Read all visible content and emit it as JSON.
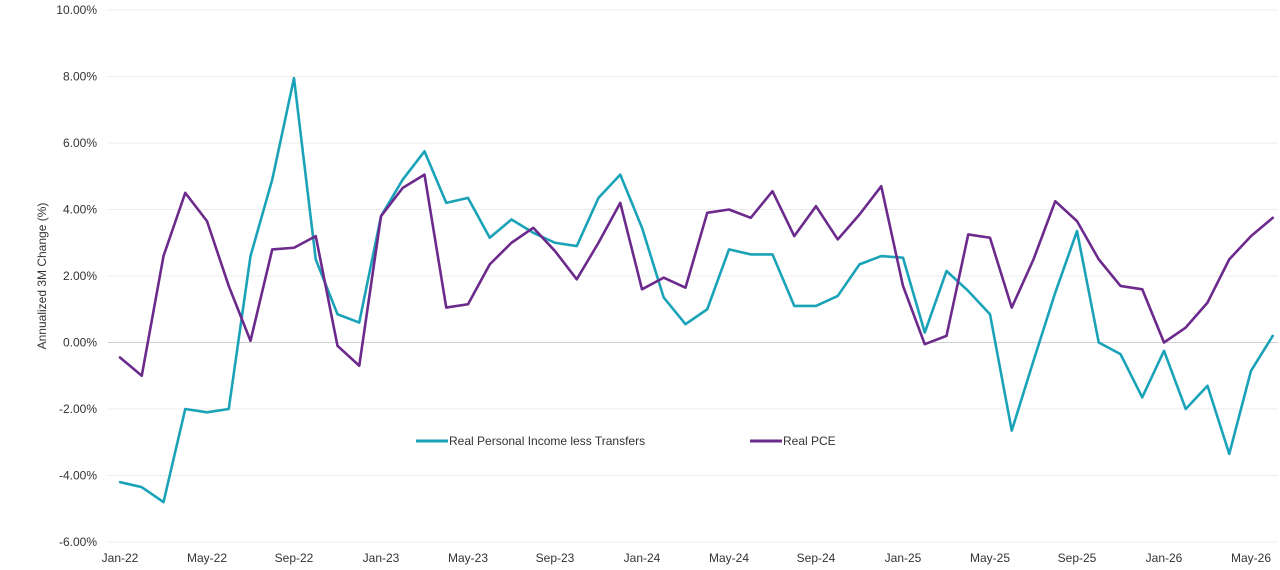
{
  "chart_data": {
    "type": "line",
    "title": "",
    "xlabel": "",
    "ylabel": "Annualized 3M Change (%)",
    "ylim": [
      -6,
      10
    ],
    "y_ticks": [
      "-6.00%",
      "-4.00%",
      "-2.00%",
      "0.00%",
      "2.00%",
      "4.00%",
      "6.00%",
      "8.00%",
      "10.00%"
    ],
    "y_tick_values": [
      -6,
      -4,
      -2,
      0,
      2,
      4,
      6,
      8,
      10
    ],
    "grid": true,
    "legend_position": "lower-center",
    "x_labels": [
      {
        "index": 0,
        "label": "Jan-22"
      },
      {
        "index": 4,
        "label": "May-22"
      },
      {
        "index": 8,
        "label": "Sep-22"
      },
      {
        "index": 12,
        "label": "Jan-23"
      },
      {
        "index": 16,
        "label": "May-23"
      },
      {
        "index": 20,
        "label": "Sep-23"
      },
      {
        "index": 24,
        "label": "Jan-24"
      },
      {
        "index": 28,
        "label": "May-24"
      },
      {
        "index": 32,
        "label": "Sep-24"
      },
      {
        "index": 36,
        "label": "Jan-25"
      },
      {
        "index": 40,
        "label": "May-25"
      },
      {
        "index": 44,
        "label": "Sep-25"
      },
      {
        "index": 48,
        "label": "Jan-26"
      },
      {
        "index": 52,
        "label": "May-26"
      }
    ],
    "x": [
      "2022-01",
      "2022-02",
      "2022-03",
      "2022-04",
      "2022-05",
      "2022-06",
      "2022-07",
      "2022-08",
      "2022-09",
      "2022-10",
      "2022-11",
      "2022-12",
      "2023-01",
      "2023-02",
      "2023-03",
      "2023-04",
      "2023-05",
      "2023-06",
      "2023-07",
      "2023-08",
      "2023-09",
      "2023-10",
      "2023-11",
      "2023-12",
      "2024-01",
      "2024-02",
      "2024-03",
      "2024-04",
      "2024-05",
      "2024-06",
      "2024-07",
      "2024-08",
      "2024-09",
      "2024-10",
      "2024-11",
      "2024-12",
      "2025-01",
      "2025-02",
      "2025-03",
      "2025-04",
      "2025-05",
      "2025-06",
      "2025-07",
      "2025-08",
      "2025-09",
      "2025-10",
      "2025-11",
      "2025-12",
      "2026-01",
      "2026-02",
      "2026-03",
      "2026-04",
      "2026-05",
      "2026-06"
    ],
    "series": [
      {
        "name": "Real Personal Income less Transfers",
        "color": "#1aa3b8",
        "values": [
          -4.2,
          -4.35,
          -4.8,
          -2.0,
          -2.1,
          -2.0,
          2.6,
          4.9,
          7.95,
          2.5,
          0.85,
          0.6,
          3.8,
          4.9,
          5.75,
          4.2,
          4.35,
          3.15,
          3.7,
          3.3,
          3.0,
          2.9,
          4.35,
          5.05,
          3.45,
          1.35,
          0.55,
          1.0,
          2.8,
          2.65,
          2.65,
          1.1,
          1.1,
          1.4,
          2.35,
          2.6,
          2.55,
          0.3,
          2.15,
          1.55,
          0.85,
          -2.65,
          -0.55,
          1.5,
          3.35,
          0.0,
          -0.35,
          -1.65,
          -0.25,
          -2.0,
          -1.3,
          -3.35,
          -0.85,
          0.2
        ]
      },
      {
        "name": "Real PCE",
        "color": "#6b2a8c",
        "values": [
          -0.45,
          -1.0,
          2.6,
          4.5,
          3.65,
          1.7,
          0.05,
          2.8,
          2.85,
          3.2,
          -0.1,
          -0.7,
          3.8,
          4.65,
          5.05,
          1.05,
          1.15,
          2.35,
          3.0,
          3.45,
          2.75,
          1.9,
          3.0,
          4.2,
          1.6,
          1.95,
          1.65,
          3.9,
          4.0,
          3.75,
          4.55,
          3.2,
          4.1,
          3.1,
          3.85,
          4.7,
          1.7,
          -0.05,
          0.2,
          3.25,
          3.15,
          1.05,
          2.5,
          4.25,
          3.65,
          2.5,
          1.7,
          1.6,
          0.0,
          0.45,
          1.2,
          2.5,
          3.2,
          3.75
        ]
      }
    ]
  }
}
